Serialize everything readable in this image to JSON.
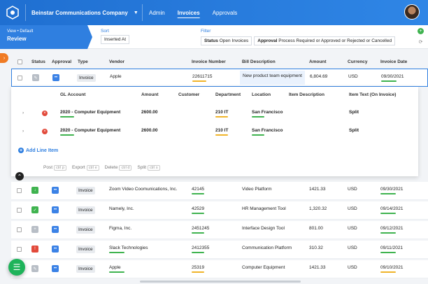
{
  "header": {
    "company": "Beinstar Communications Company",
    "nav": [
      "Admin",
      "Invoices",
      "Approvals"
    ],
    "active_nav": "Invoices"
  },
  "view": {
    "small": "View • Default",
    "big": "Review"
  },
  "sort": {
    "label": "Sort",
    "value": "Inserted At"
  },
  "filter": {
    "label": "Filter",
    "status_label": "Status",
    "status_value": "Open Invoices",
    "approval_label": "Approval",
    "approval_value": "Process Required or Approved or Rejected or Cancelled"
  },
  "columns": [
    "Status",
    "Approval",
    "Type",
    "Vendor",
    "Invoice Number",
    "Bill Description",
    "Amount",
    "Currency",
    "Invoice Date"
  ],
  "first_row": {
    "type": "Invoice",
    "vendor": "Apple",
    "invoice_number": "22611715",
    "description": "New product team equipment",
    "amount": "6,804.69",
    "currency": "USD",
    "date": "09/30/2021"
  },
  "sub_columns": [
    "GL Account",
    "Amount",
    "Customer",
    "Department",
    "Location",
    "Item Description",
    "Item Text (On Invoice)"
  ],
  "lines": [
    {
      "gl": "2020 - Computer Equipment",
      "amount": "2600.00",
      "department": "210 IT",
      "location": "San Francisco",
      "item_text": "Split"
    },
    {
      "gl": "2020 - Computer Equipment",
      "amount": "2600.00",
      "department": "210 IT",
      "location": "San Francisco",
      "item_text": "Split"
    }
  ],
  "add_line": "Add Line Item",
  "actions": [
    {
      "label": "Post",
      "key": "ctrl p"
    },
    {
      "label": "Export",
      "key": "ctrl e"
    },
    {
      "label": "Delete",
      "key": "ctrl d"
    },
    {
      "label": "Split",
      "key": "ctrl s"
    }
  ],
  "rows": [
    {
      "status": "download",
      "type": "Invoice",
      "vendor": "Zoom Video Coomunications, Inc.",
      "invoice_number": "42145",
      "description": "Video Platform",
      "amount": "1421.33",
      "currency": "USD",
      "date": "09/30/2021"
    },
    {
      "status": "check",
      "type": "Invoice",
      "vendor": "Namely, Inc.",
      "invoice_number": "42529",
      "description": "HR Management Tool",
      "amount": "1,320.32",
      "currency": "USD",
      "date": "09/14/2021"
    },
    {
      "status": "plus",
      "type": "Invoice",
      "vendor": "Figma, Inc.",
      "invoice_number": "2451245",
      "description": "Interface Design Tool",
      "amount": "801.00",
      "currency": "USD",
      "date": "09/12/2021"
    },
    {
      "status": "alert",
      "type": "Invoice",
      "vendor": "Slack Technologies",
      "invoice_number": "2412355",
      "description": "Communication Platform",
      "amount": "310.32",
      "currency": "USD",
      "date": "09/11/2021"
    },
    {
      "status": "edit",
      "type": "Invoice",
      "vendor": "Apple",
      "invoice_number": "25319",
      "description": "Computer Equipment",
      "amount": "1421.33",
      "currency": "USD",
      "date": "09/10/2021"
    }
  ],
  "colors": {
    "brand": "#2f7fe0",
    "green": "#3fb34f",
    "orange": "#f07b24",
    "red": "#e24a3b"
  }
}
